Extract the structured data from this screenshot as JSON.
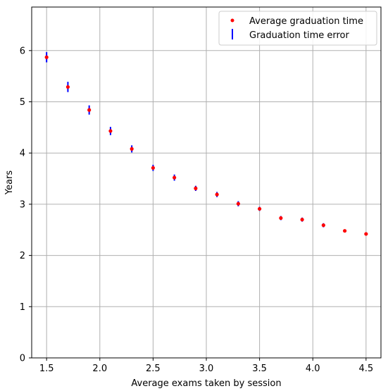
{
  "chart_data": {
    "type": "scatter",
    "title": "",
    "xlabel": "Average exams taken by session",
    "ylabel": "Years",
    "xlim": [
      1.36,
      4.64
    ],
    "ylim": [
      0,
      6.85
    ],
    "xticks": [
      1.5,
      2.0,
      2.5,
      3.0,
      3.5,
      4.0,
      4.5
    ],
    "xtick_labels": [
      "1.5",
      "2.0",
      "2.5",
      "3.0",
      "3.5",
      "4.0",
      "4.5"
    ],
    "yticks": [
      0,
      1,
      2,
      3,
      4,
      5,
      6
    ],
    "ytick_labels": [
      "0",
      "1",
      "2",
      "3",
      "4",
      "5",
      "6"
    ],
    "grid": true,
    "legend_position": "top-right",
    "series": [
      {
        "name": "Average graduation time",
        "color": "#ff0000",
        "marker": "point",
        "x": [
          1.5,
          1.7,
          1.9,
          2.1,
          2.3,
          2.5,
          2.7,
          2.9,
          3.1,
          3.3,
          3.5,
          3.7,
          3.9,
          4.1,
          4.3,
          4.5
        ],
        "y": [
          5.87,
          5.29,
          4.84,
          4.43,
          4.08,
          3.71,
          3.52,
          3.31,
          3.19,
          3.01,
          2.91,
          2.73,
          2.7,
          2.59,
          2.48,
          2.42
        ]
      }
    ],
    "error_series": {
      "name": "Graduation time error",
      "color": "#0000ff",
      "errors": [
        0.1,
        0.1,
        0.09,
        0.08,
        0.07,
        0.06,
        0.06,
        0.05,
        0.05,
        0.05,
        0.04,
        0.04,
        0.04,
        0.04,
        0.03,
        0.03
      ]
    }
  }
}
